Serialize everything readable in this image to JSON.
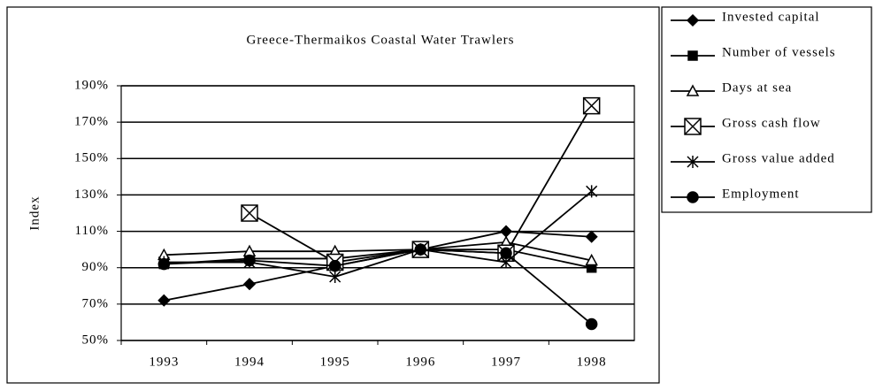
{
  "chart_data": {
    "type": "line",
    "title": "Greece-Thermaikos Coastal Water Trawlers",
    "y_label": "Index",
    "categories": [
      "1993",
      "1994",
      "1995",
      "1996",
      "1997",
      "1998"
    ],
    "ylim": [
      50,
      190
    ],
    "yticks": [
      {
        "value": 50,
        "label": "50%"
      },
      {
        "value": 70,
        "label": "70%"
      },
      {
        "value": 90,
        "label": "90%"
      },
      {
        "value": 110,
        "label": "110%"
      },
      {
        "value": 130,
        "label": "130%"
      },
      {
        "value": 150,
        "label": "150%"
      },
      {
        "value": 170,
        "label": "170%"
      },
      {
        "value": 190,
        "label": "190%"
      }
    ],
    "grid": true,
    "legend": "right",
    "series": [
      {
        "name": "Invested capital",
        "color": "#000000",
        "marker": "diamond",
        "values": [
          72,
          81,
          91,
          100,
          110,
          107
        ]
      },
      {
        "name": "Number of vessels",
        "color": "#000000",
        "marker": "square",
        "values": [
          92,
          95,
          95,
          100,
          100,
          90
        ]
      },
      {
        "name": "Days at sea",
        "color": "#000000",
        "marker": "triangle",
        "values": [
          97,
          99,
          99,
          100,
          104,
          94
        ]
      },
      {
        "name": "Gross cash flow",
        "color": "#000000",
        "marker": "boxcross",
        "values": [
          null,
          120,
          93,
          100,
          98,
          179
        ]
      },
      {
        "name": "Gross value added",
        "color": "#000000",
        "marker": "asterisk",
        "values": [
          93,
          93,
          85,
          100,
          93,
          132
        ]
      },
      {
        "name": "Employment",
        "color": "#000000",
        "marker": "circle",
        "values": [
          92,
          94,
          91,
          100,
          98,
          59
        ]
      }
    ]
  }
}
